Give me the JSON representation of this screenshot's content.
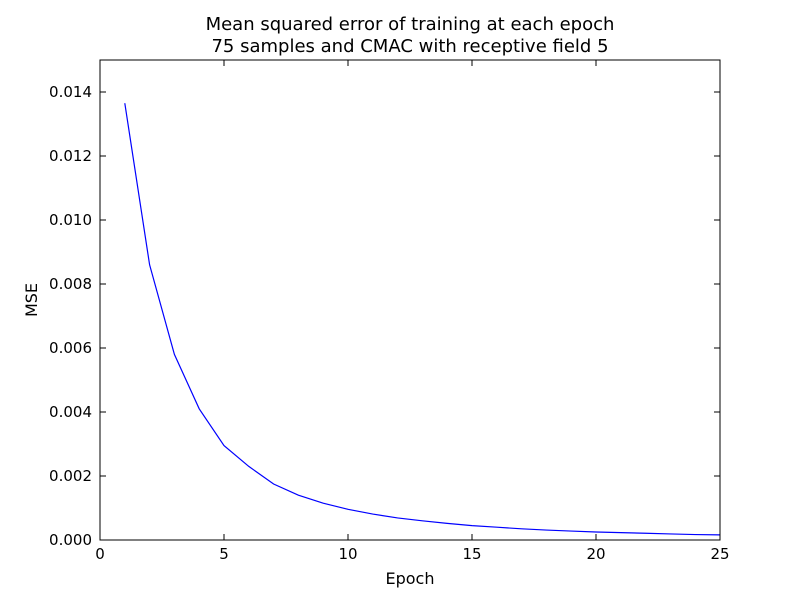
{
  "chart_data": {
    "type": "line",
    "title": "Mean squared error of training at each epoch",
    "subtitle": "75 samples and CMAC with receptive field 5",
    "xlabel": "Epoch",
    "ylabel": "MSE",
    "xlim": [
      0,
      25
    ],
    "ylim": [
      0,
      0.015
    ],
    "xticks": [
      "0",
      "5",
      "10",
      "15",
      "20",
      "25"
    ],
    "yticks": [
      "0.000",
      "0.002",
      "0.004",
      "0.006",
      "0.008",
      "0.010",
      "0.012",
      "0.014"
    ],
    "grid": false,
    "series": [
      {
        "color": "#0000ff",
        "x": [
          1,
          2,
          3,
          4,
          5,
          6,
          7,
          8,
          9,
          10,
          11,
          12,
          13,
          14,
          15,
          16,
          17,
          18,
          19,
          20,
          21,
          22,
          23,
          24,
          25
        ],
        "y": [
          0.01365,
          0.0086,
          0.0058,
          0.0041,
          0.00295,
          0.0023,
          0.00175,
          0.0014,
          0.00115,
          0.00096,
          0.00081,
          0.00069,
          0.0006,
          0.00052,
          0.00045,
          0.0004,
          0.00035,
          0.00031,
          0.00028,
          0.00025,
          0.00023,
          0.00021,
          0.00019,
          0.00017,
          0.00016
        ]
      }
    ]
  }
}
